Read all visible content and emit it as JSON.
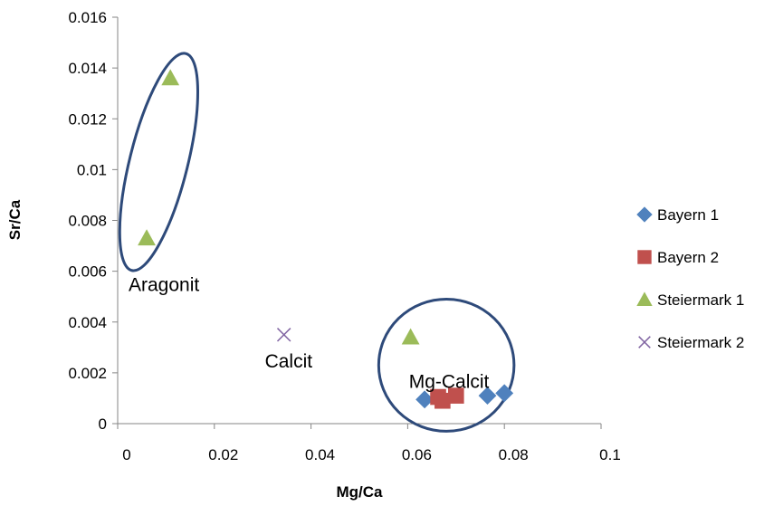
{
  "chart_data": {
    "type": "scatter",
    "xlabel": "Mg/Ca",
    "ylabel": "Sr/Ca",
    "xlim": [
      0,
      0.1
    ],
    "ylim": [
      0,
      0.016
    ],
    "x_ticks": [
      "0",
      "0.02",
      "0.04",
      "0.06",
      "0.08",
      "0.1"
    ],
    "y_ticks": [
      "0",
      "0.002",
      "0.004",
      "0.006",
      "0.008",
      "0.01",
      "0.012",
      "0.014",
      "0.016"
    ],
    "grid": false,
    "legend_position": "right",
    "series": [
      {
        "name": "Bayern 1",
        "marker": "diamond",
        "color": "#4F81BD",
        "points": [
          [
            0.0635,
            0.00095
          ],
          [
            0.0765,
            0.0011
          ],
          [
            0.08,
            0.0012
          ]
        ]
      },
      {
        "name": "Bayern 2",
        "marker": "square",
        "color": "#C0504D",
        "points": [
          [
            0.0663,
            0.00105
          ],
          [
            0.0672,
            0.0009
          ],
          [
            0.07,
            0.0011
          ]
        ]
      },
      {
        "name": "Steiermark 1",
        "marker": "triangle",
        "color": "#9BBB59",
        "points": [
          [
            0.006,
            0.0073
          ],
          [
            0.0109,
            0.0136
          ],
          [
            0.0606,
            0.0034
          ]
        ]
      },
      {
        "name": "Steiermark 2",
        "marker": "x",
        "color": "#8064A2",
        "points": [
          [
            0.0344,
            0.0035
          ]
        ]
      }
    ],
    "annotations": [
      {
        "text": "Aragonit",
        "x": 0.0,
        "y": 0.0055
      },
      {
        "text": "Calcit",
        "x": 0.0282,
        "y": 0.0025
      },
      {
        "text": "Mg-Calcit",
        "x": 0.058,
        "y": 0.0017
      }
    ],
    "ellipses": [
      {
        "label": "Aragonit",
        "cx": 0.0085,
        "cy": 0.0103,
        "rx": 0.006,
        "ry": 0.0044,
        "rotation": 14
      },
      {
        "label": "Mg-Calcit",
        "cx": 0.068,
        "cy": 0.0023,
        "rx": 0.014,
        "ry": 0.0026,
        "rotation": 0
      }
    ],
    "ellipse_color": "#2E4A7A"
  }
}
